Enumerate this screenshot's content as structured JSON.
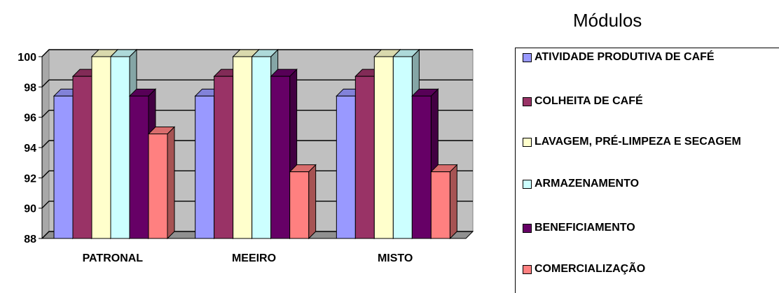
{
  "chart_data": {
    "type": "bar",
    "categories": [
      "PATRONAL",
      "MEEIRO",
      "MISTO"
    ],
    "series": [
      {
        "name": "ATIVIDADE PRODUTIVA DE CAFÉ",
        "values": [
          97.4,
          97.4,
          97.4
        ],
        "color": "#9999ff"
      },
      {
        "name": "COLHEITA DE CAFÉ",
        "values": [
          98.7,
          98.7,
          98.7
        ],
        "color": "#993366"
      },
      {
        "name": "LAVAGEM, PRÉ-LIMPEZA E SECAGEM",
        "values": [
          100,
          100,
          100
        ],
        "color": "#ffffcc"
      },
      {
        "name": "ARMAZENAMENTO",
        "values": [
          100,
          100,
          100
        ],
        "color": "#ccffff"
      },
      {
        "name": "BENEFICIAMENTO",
        "values": [
          97.4,
          98.7,
          97.4
        ],
        "color": "#660066"
      },
      {
        "name": "COMERCIALIZAÇÃO",
        "values": [
          94.9,
          92.4,
          92.4
        ],
        "color": "#ff8080"
      }
    ],
    "yticks": [
      "88",
      "90",
      "92",
      "94",
      "96",
      "98",
      "100"
    ],
    "ylim": [
      88,
      100
    ],
    "grid": true,
    "legend_title": "Módulos",
    "legend_position": "right"
  }
}
